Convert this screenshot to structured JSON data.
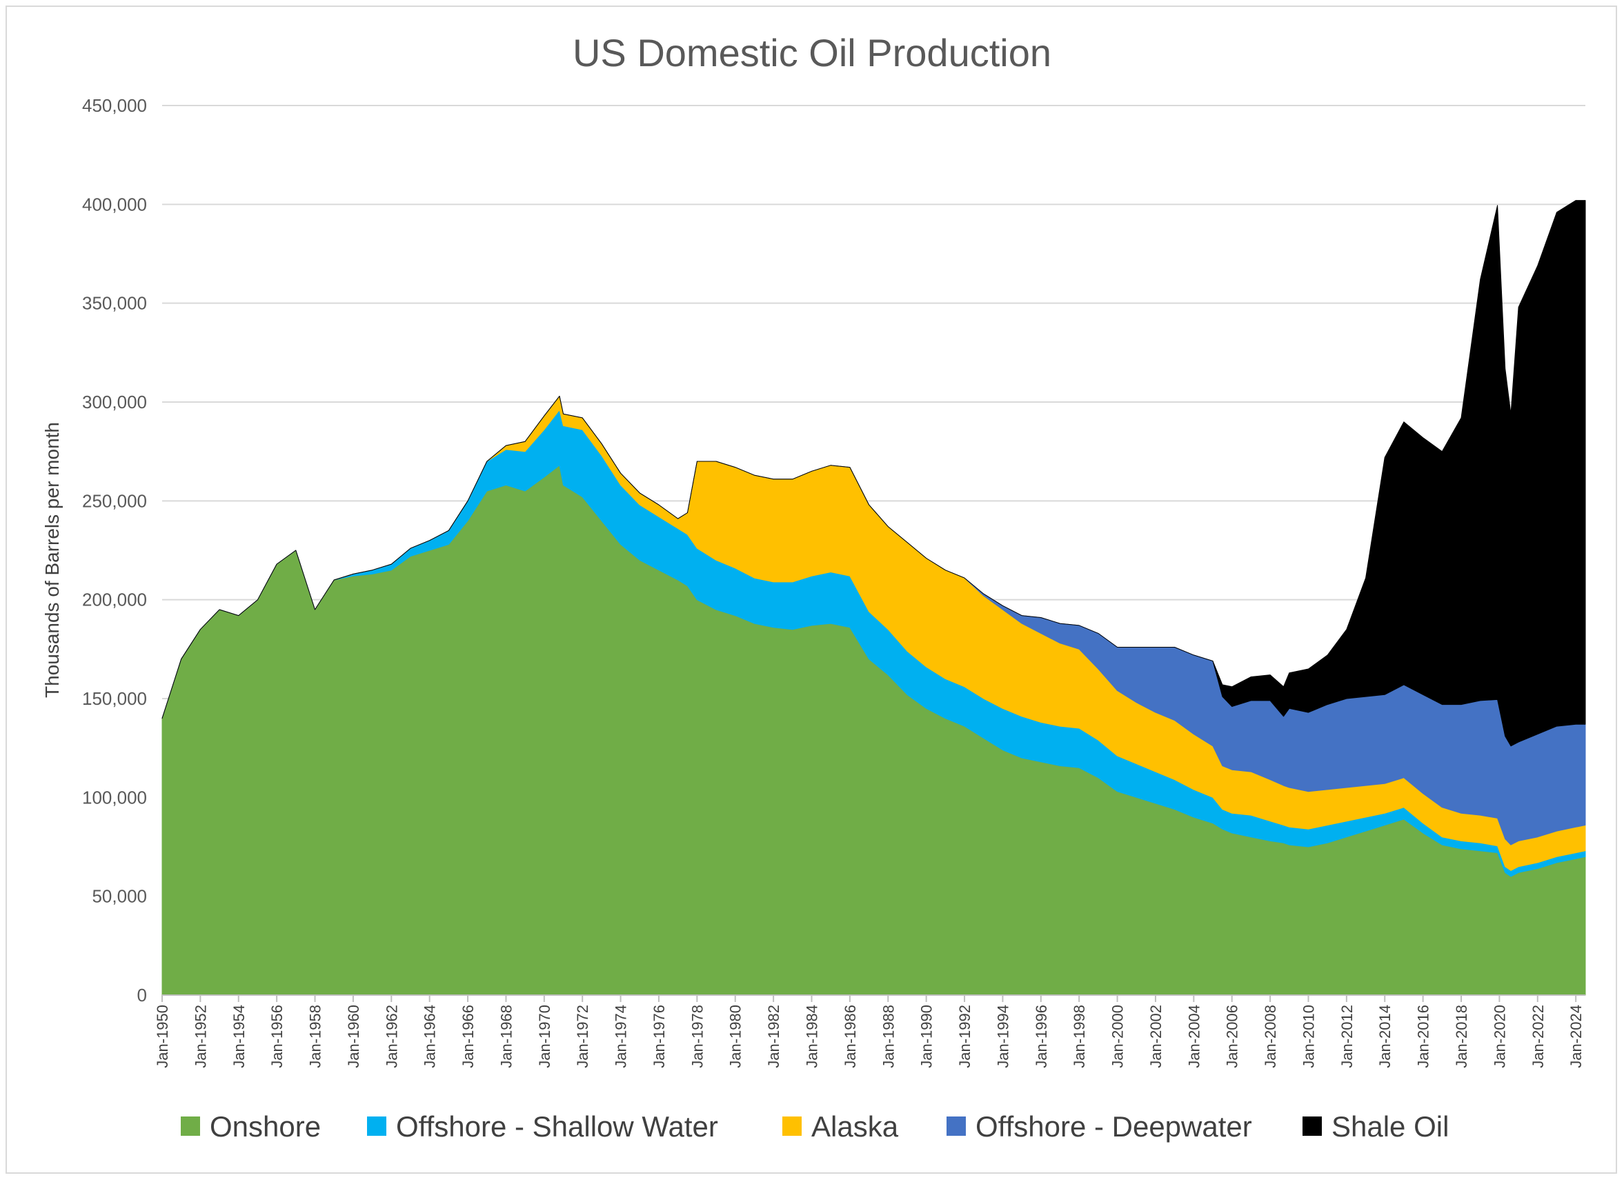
{
  "chart_data": {
    "type": "area",
    "stacked": true,
    "title": "US Domestic Oil Production",
    "xlabel": "",
    "ylabel": "Thousands of Barrels per month",
    "ylim": [
      0,
      450000
    ],
    "yticks": [
      0,
      50000,
      100000,
      150000,
      200000,
      250000,
      300000,
      350000,
      400000,
      450000
    ],
    "ytick_labels": [
      "0",
      "50,000",
      "100,000",
      "150,000",
      "200,000",
      "250,000",
      "300,000",
      "350,000",
      "400,000",
      "450,000"
    ],
    "xlim": [
      1950,
      2024.5
    ],
    "xtick_years": [
      1950,
      1952,
      1954,
      1956,
      1958,
      1960,
      1962,
      1964,
      1966,
      1968,
      1970,
      1972,
      1974,
      1976,
      1978,
      1980,
      1982,
      1984,
      1986,
      1988,
      1990,
      1992,
      1994,
      1996,
      1998,
      2000,
      2002,
      2004,
      2006,
      2008,
      2010,
      2012,
      2014,
      2016,
      2018,
      2020,
      2022,
      2024
    ],
    "xtick_labels": [
      "Jan-1950",
      "Jan-1952",
      "Jan-1954",
      "Jan-1956",
      "Jan-1958",
      "Jan-1960",
      "Jan-1962",
      "Jan-1964",
      "Jan-1966",
      "Jan-1968",
      "Jan-1970",
      "Jan-1972",
      "Jan-1974",
      "Jan-1976",
      "Jan-1978",
      "Jan-1980",
      "Jan-1982",
      "Jan-1984",
      "Jan-1986",
      "Jan-1988",
      "Jan-1990",
      "Jan-1992",
      "Jan-1994",
      "Jan-1996",
      "Jan-1998",
      "Jan-2000",
      "Jan-2002",
      "Jan-2004",
      "Jan-2006",
      "Jan-2008",
      "Jan-2010",
      "Jan-2012",
      "Jan-2014",
      "Jan-2016",
      "Jan-2018",
      "Jan-2020",
      "Jan-2022",
      "Jan-2024"
    ],
    "grid": true,
    "legend_position": "bottom",
    "x": [
      1950,
      1951,
      1952,
      1953,
      1954,
      1955,
      1956,
      1957,
      1958,
      1959,
      1960,
      1961,
      1962,
      1963,
      1964,
      1965,
      1966,
      1967,
      1968,
      1969,
      1970,
      1970.8,
      1971,
      1972,
      1973,
      1974,
      1975,
      1976,
      1977,
      1977.5,
      1978,
      1979,
      1980,
      1981,
      1982,
      1983,
      1984,
      1985,
      1986,
      1987,
      1988,
      1989,
      1990,
      1991,
      1992,
      1993,
      1994,
      1995,
      1996,
      1997,
      1998,
      1999,
      2000,
      2001,
      2002,
      2003,
      2004,
      2005,
      2005.5,
      2006,
      2007,
      2008,
      2008.7,
      2009,
      2010,
      2011,
      2012,
      2013,
      2014,
      2015,
      2016,
      2017,
      2018,
      2019,
      2019.9,
      2020.3,
      2020.6,
      2021,
      2022,
      2023,
      2024,
      2024.5
    ],
    "series": [
      {
        "name": "Onshore",
        "color": "#70ad47",
        "values": [
          140000,
          170000,
          185000,
          195000,
          192000,
          200000,
          218000,
          225000,
          195000,
          210000,
          212000,
          213000,
          215000,
          222000,
          225000,
          228000,
          240000,
          255000,
          258000,
          255000,
          262000,
          268000,
          258000,
          252000,
          240000,
          228000,
          220000,
          215000,
          210000,
          207000,
          200000,
          195000,
          192000,
          188000,
          186000,
          185000,
          187000,
          188000,
          186000,
          170000,
          162000,
          152000,
          145000,
          140000,
          136000,
          130000,
          124000,
          120000,
          118000,
          116000,
          115000,
          110000,
          103000,
          100000,
          97000,
          94000,
          90000,
          87000,
          84000,
          82000,
          80000,
          78000,
          77000,
          76000,
          75000,
          77000,
          80000,
          83000,
          86000,
          89000,
          82000,
          76000,
          74000,
          73000,
          72000,
          62000,
          60000,
          62000,
          64000,
          67000,
          69000,
          70000
        ]
      },
      {
        "name": "Offshore - Shallow Water",
        "color": "#00b0f0",
        "values": [
          0,
          0,
          0,
          0,
          0,
          0,
          0,
          0,
          0,
          0,
          1000,
          2000,
          3000,
          4000,
          5000,
          7000,
          10000,
          15000,
          18000,
          20000,
          24000,
          28000,
          30000,
          34000,
          33000,
          30000,
          28000,
          27000,
          26000,
          26000,
          26000,
          25000,
          24000,
          23000,
          23000,
          24000,
          25000,
          26000,
          26000,
          24000,
          23000,
          22000,
          21000,
          20000,
          20000,
          20000,
          21000,
          21000,
          20000,
          20000,
          20000,
          19000,
          18000,
          17000,
          16000,
          15000,
          14000,
          13000,
          10000,
          10000,
          11000,
          10000,
          9000,
          9000,
          9000,
          9000,
          8000,
          7000,
          6000,
          6000,
          5000,
          4000,
          4000,
          4000,
          3500,
          3000,
          3000,
          3000,
          3000,
          3000,
          3000,
          3000
        ]
      },
      {
        "name": "Alaska",
        "color": "#ffc000",
        "values": [
          0,
          0,
          0,
          0,
          0,
          0,
          0,
          0,
          0,
          0,
          0,
          0,
          0,
          0,
          0,
          0,
          0,
          0,
          2000,
          5000,
          7000,
          7000,
          6000,
          6000,
          6000,
          6000,
          6000,
          6000,
          5000,
          11000,
          44000,
          50000,
          51000,
          52000,
          52000,
          52000,
          53000,
          54000,
          55000,
          54000,
          52000,
          55000,
          55000,
          55000,
          55000,
          52000,
          50000,
          47000,
          45000,
          42000,
          40000,
          36000,
          33000,
          31000,
          30000,
          30000,
          28000,
          26000,
          22000,
          22000,
          22000,
          21000,
          20000,
          20000,
          19000,
          18000,
          17000,
          16000,
          15000,
          15000,
          15000,
          15000,
          14000,
          14000,
          14000,
          14000,
          13000,
          13000,
          13000,
          13000,
          13000,
          13000
        ]
      },
      {
        "name": "Offshore - Deepwater",
        "color": "#4472c4",
        "values": [
          0,
          0,
          0,
          0,
          0,
          0,
          0,
          0,
          0,
          0,
          0,
          0,
          0,
          0,
          0,
          0,
          0,
          0,
          0,
          0,
          0,
          0,
          0,
          0,
          0,
          0,
          0,
          0,
          0,
          0,
          0,
          0,
          0,
          0,
          0,
          0,
          0,
          0,
          0,
          0,
          0,
          0,
          0,
          0,
          0,
          1000,
          2000,
          4000,
          8000,
          10000,
          12000,
          18000,
          22000,
          28000,
          33000,
          37000,
          40000,
          43000,
          35000,
          32000,
          36000,
          40000,
          35000,
          40000,
          40000,
          43000,
          45000,
          45000,
          45000,
          47000,
          50000,
          52000,
          55000,
          58000,
          60000,
          52000,
          50000,
          50000,
          52000,
          53000,
          52000,
          51000
        ]
      },
      {
        "name": "Shale Oil",
        "color": "#000000",
        "values": [
          0,
          0,
          0,
          0,
          0,
          0,
          0,
          0,
          0,
          0,
          0,
          0,
          0,
          0,
          0,
          0,
          0,
          0,
          0,
          0,
          0,
          0,
          0,
          0,
          0,
          0,
          0,
          0,
          0,
          0,
          0,
          0,
          0,
          0,
          0,
          0,
          0,
          0,
          0,
          0,
          0,
          0,
          0,
          0,
          0,
          0,
          0,
          0,
          0,
          0,
          0,
          0,
          0,
          0,
          0,
          0,
          0,
          0,
          6000,
          10000,
          12000,
          13000,
          15000,
          18000,
          22000,
          25000,
          35000,
          60000,
          120000,
          133000,
          130000,
          128000,
          145000,
          213000,
          250000,
          186000,
          168000,
          220000,
          237000,
          260000,
          265000,
          265000
        ]
      }
    ]
  }
}
